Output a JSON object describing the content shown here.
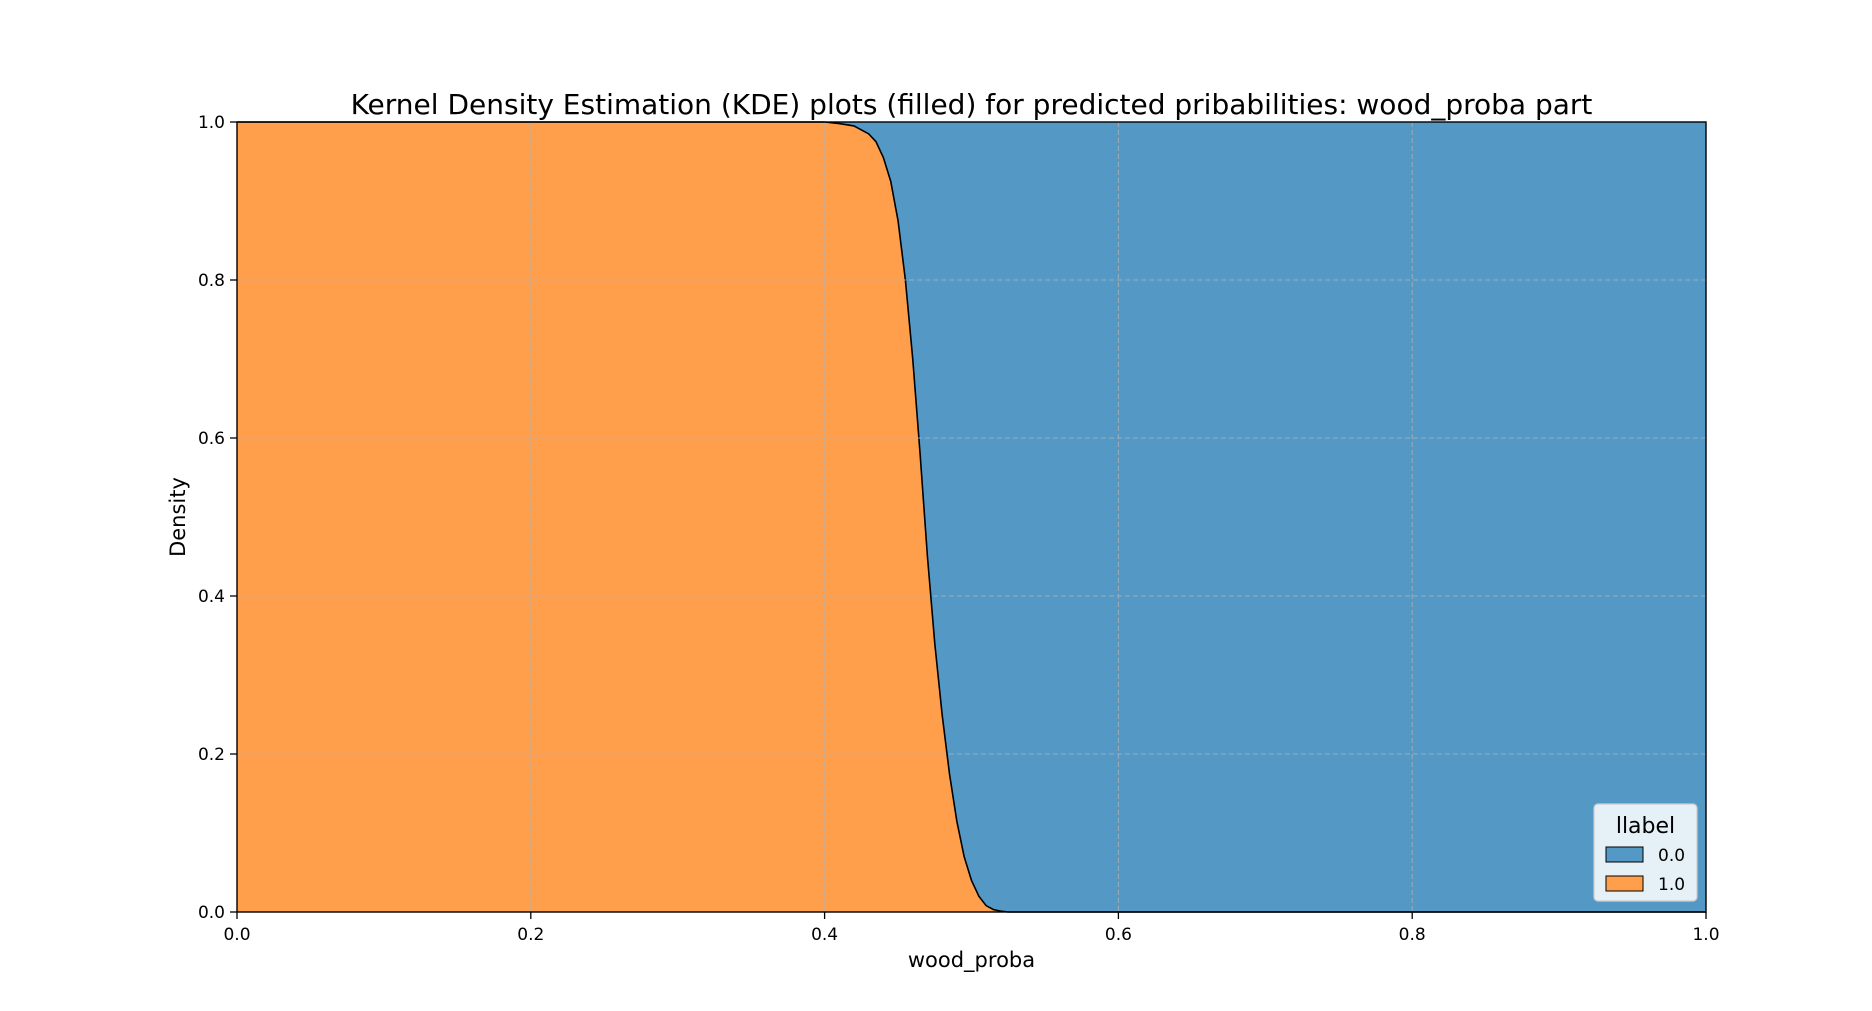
{
  "chart_data": {
    "type": "area",
    "stacked_fill": true,
    "title": "Kernel Density Estimation (KDE) plots (filled) for predicted pribabilities: wood_proba part",
    "xlabel": "wood_proba",
    "ylabel": "Density",
    "xlim": [
      0.0,
      1.0
    ],
    "ylim": [
      0.0,
      1.0
    ],
    "xticks": [
      "0.0",
      "0.2",
      "0.4",
      "0.6",
      "0.8",
      "1.0"
    ],
    "yticks": [
      "0.0",
      "0.2",
      "0.4",
      "0.6",
      "0.8",
      "1.0"
    ],
    "grid": true,
    "legend": {
      "title": "llabel",
      "placement": "lower-right",
      "entries": [
        {
          "label": "0.0",
          "color": "#5498c6"
        },
        {
          "label": "1.0",
          "color": "#ff9f4b"
        }
      ]
    },
    "series": [
      {
        "name": "0.0",
        "color": "#5498c6",
        "note_fill": "top region"
      },
      {
        "name": "1.0",
        "color": "#ff9f4b",
        "note_fill": "bottom region"
      }
    ],
    "boundary": {
      "x": [
        0.0,
        0.4,
        0.41,
        0.42,
        0.43,
        0.435,
        0.44,
        0.445,
        0.45,
        0.455,
        0.46,
        0.465,
        0.47,
        0.475,
        0.48,
        0.485,
        0.49,
        0.495,
        0.5,
        0.505,
        0.51,
        0.515,
        0.52,
        0.525,
        0.53,
        1.0
      ],
      "y": [
        1.0,
        1.0,
        0.998,
        0.995,
        0.985,
        0.975,
        0.955,
        0.925,
        0.875,
        0.8,
        0.7,
        0.58,
        0.45,
        0.34,
        0.25,
        0.175,
        0.115,
        0.07,
        0.04,
        0.02,
        0.008,
        0.003,
        0.001,
        0.0,
        0.0,
        0.0
      ]
    }
  }
}
